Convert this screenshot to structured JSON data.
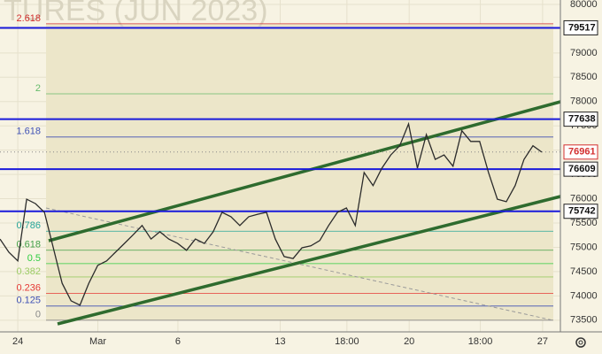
{
  "chart_data": {
    "type": "line",
    "title": "TURES (JUN 2023)",
    "values": [
      75170,
      74900,
      74720,
      75990,
      75900,
      75720,
      74990,
      74260,
      73900,
      73810,
      74260,
      74630,
      74720,
      74900,
      75080,
      75260,
      75450,
      75170,
      75320,
      75170,
      75080,
      74940,
      75170,
      75080,
      75320,
      75720,
      75630,
      75450,
      75630,
      75680,
      75720,
      75170,
      74810,
      74770,
      74990,
      75030,
      75140,
      75450,
      75720,
      75810,
      75450,
      76540,
      76270,
      76630,
      76900,
      77090,
      77540,
      76630,
      77320,
      76810,
      76900,
      76670,
      77400,
      77180,
      77180,
      76540,
      75990,
      75940,
      76270,
      76810,
      77090,
      76960
    ],
    "color": "#2b2b2b",
    "xlim": [
      0,
      63
    ],
    "xticks": [
      {
        "value": 2,
        "label": "24"
      },
      {
        "value": 11,
        "label": "Mar"
      },
      {
        "value": 20,
        "label": "6"
      },
      {
        "value": 31.5,
        "label": "13"
      },
      {
        "value": 39,
        "label": "18:00"
      },
      {
        "value": 46,
        "label": "20"
      },
      {
        "value": 54,
        "label": "18:00"
      },
      {
        "value": 61,
        "label": "27"
      }
    ],
    "ylim": [
      73260,
      80090
    ],
    "yticks": [
      73500,
      74000,
      74500,
      75000,
      75500,
      76000,
      76500,
      77000,
      77500,
      78000,
      78500,
      79000,
      79500,
      80000
    ],
    "grid": true,
    "levels": [
      {
        "value": 79517,
        "color": "#1a1adb"
      },
      {
        "value": 77638,
        "color": "#1a1adb"
      },
      {
        "value": 76609,
        "color": "#1a1adb"
      },
      {
        "value": 75742,
        "color": "#1a1adb"
      }
    ],
    "last_price": {
      "value": 76961,
      "color": "#d32f2f"
    },
    "fib": {
      "anchor_prices": [
        73500,
        75830
      ],
      "levels": [
        {
          "value": 2.618,
          "color": "#d32f2f"
        },
        {
          "value": 2,
          "color": "#66bb6a"
        },
        {
          "value": 1.618,
          "color": "#3f51b5"
        },
        {
          "value": 0.786,
          "color": "#26a69a"
        },
        {
          "value": 0.618,
          "color": "#43a047"
        },
        {
          "value": 0.5,
          "color": "#2ecc40"
        },
        {
          "value": 0.382,
          "color": "#9ccc65"
        },
        {
          "value": 0.236,
          "color": "#e53935"
        },
        {
          "value": 0.125,
          "color": "#3f51b5"
        },
        {
          "value": 0,
          "color": "#888888"
        }
      ]
    }
  }
}
